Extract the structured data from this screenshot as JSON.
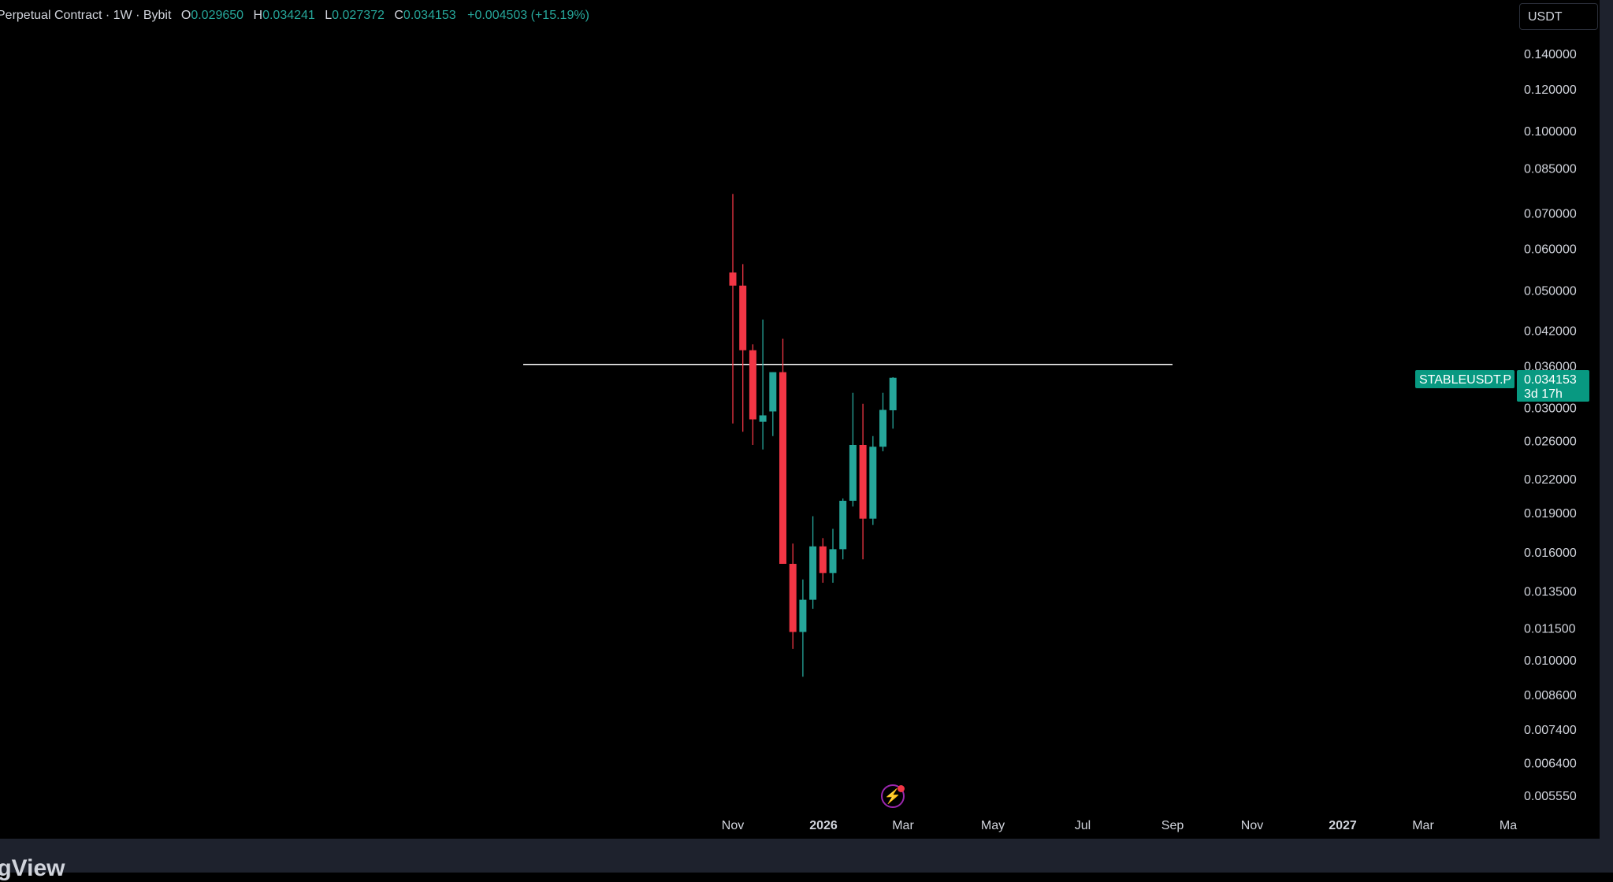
{
  "legend": {
    "title": "Perpetual Contract · 1W · Bybit",
    "open_label": "O",
    "open": "0.029650",
    "high_label": "H",
    "high": "0.034241",
    "low_label": "L",
    "low": "0.027372",
    "close_label": "C",
    "close": "0.034153",
    "change": "+0.004503 (+15.19%)"
  },
  "currency": "USDT",
  "brand": "ngView",
  "price_tag": {
    "symbol": "STABLEUSDT.P",
    "price": "0.034153",
    "countdown": "3d 17h"
  },
  "colors": {
    "up": "#26a69a",
    "down": "#f23645",
    "background": "#000000",
    "axis_text": "#d1d4dc",
    "horizontal_line": "#ffffff",
    "tag": "#089981"
  },
  "icons": [
    "lightning-icon"
  ],
  "chart_data": {
    "type": "candlestick",
    "interval": "1W",
    "y_scale": "log",
    "y_ticks": [
      "0.140000",
      "0.120000",
      "0.100000",
      "0.085000",
      "0.070000",
      "0.060000",
      "0.050000",
      "0.042000",
      "0.036000",
      "0.030000",
      "0.026000",
      "0.022000",
      "0.019000",
      "0.016000",
      "0.013500",
      "0.011500",
      "0.010000",
      "0.008600",
      "0.007400",
      "0.006400",
      "0.005550"
    ],
    "x_ticks": [
      {
        "label": "Nov",
        "bold": false
      },
      {
        "label": "2026",
        "bold": true
      },
      {
        "label": "Mar",
        "bold": false
      },
      {
        "label": "May",
        "bold": false
      },
      {
        "label": "Jul",
        "bold": false
      },
      {
        "label": "Sep",
        "bold": false
      },
      {
        "label": "Nov",
        "bold": false
      },
      {
        "label": "2027",
        "bold": true
      },
      {
        "label": "Mar",
        "bold": false
      },
      {
        "label": "Ma",
        "bold": false
      }
    ],
    "horizontal_line": 0.0362,
    "candles": [
      {
        "o": 0.054,
        "h": 0.076,
        "l": 0.028,
        "c": 0.051
      },
      {
        "o": 0.051,
        "h": 0.056,
        "l": 0.027,
        "c": 0.0385
      },
      {
        "o": 0.0385,
        "h": 0.0395,
        "l": 0.0255,
        "c": 0.0285
      },
      {
        "o": 0.0282,
        "h": 0.044,
        "l": 0.025,
        "c": 0.029
      },
      {
        "o": 0.0295,
        "h": 0.035,
        "l": 0.0265,
        "c": 0.035
      },
      {
        "o": 0.035,
        "h": 0.0405,
        "l": 0.0152,
        "c": 0.0152
      },
      {
        "o": 0.0152,
        "h": 0.0166,
        "l": 0.0105,
        "c": 0.0113
      },
      {
        "o": 0.0113,
        "h": 0.0142,
        "l": 0.0093,
        "c": 0.013
      },
      {
        "o": 0.013,
        "h": 0.0187,
        "l": 0.0125,
        "c": 0.0164
      },
      {
        "o": 0.0164,
        "h": 0.017,
        "l": 0.014,
        "c": 0.0146
      },
      {
        "o": 0.0146,
        "h": 0.0177,
        "l": 0.014,
        "c": 0.0162
      },
      {
        "o": 0.0162,
        "h": 0.0202,
        "l": 0.0155,
        "c": 0.02
      },
      {
        "o": 0.02,
        "h": 0.032,
        "l": 0.0195,
        "c": 0.0255
      },
      {
        "o": 0.0255,
        "h": 0.0305,
        "l": 0.0155,
        "c": 0.0185
      },
      {
        "o": 0.0185,
        "h": 0.0265,
        "l": 0.018,
        "c": 0.0253
      },
      {
        "o": 0.0253,
        "h": 0.032,
        "l": 0.0248,
        "c": 0.0297
      },
      {
        "o": 0.02965,
        "h": 0.034241,
        "l": 0.027372,
        "c": 0.034153
      }
    ]
  }
}
